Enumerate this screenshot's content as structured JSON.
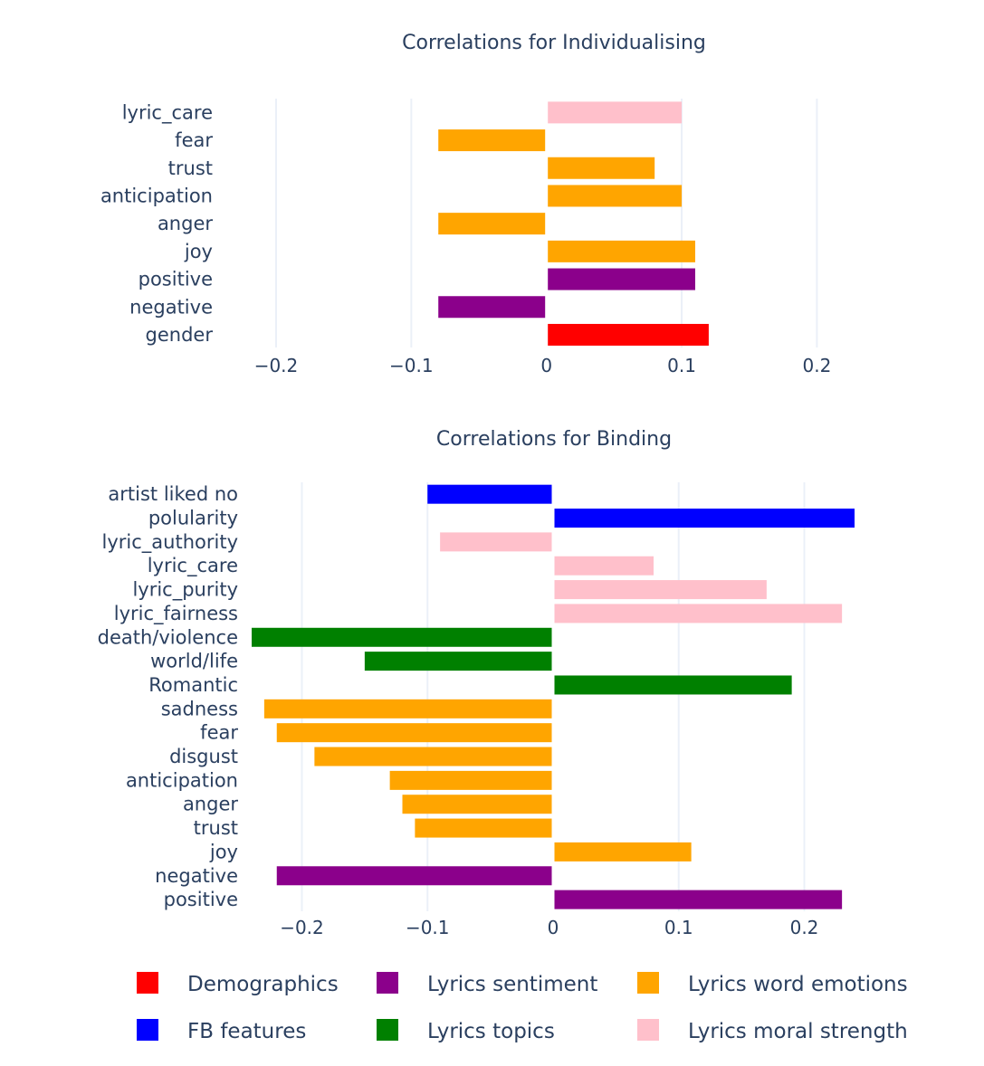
{
  "colors": {
    "Demographics": "#ff0000",
    "Lyrics sentiment": "#8b008b",
    "Lyrics word emotions": "#ffa500",
    "FB features": "#0000ff",
    "Lyrics topics": "#008000",
    "Lyrics moral strength": "#ffc0cb"
  },
  "chart_data": [
    {
      "type": "bar",
      "orientation": "horizontal",
      "title": "Correlations for Individualising",
      "xlim": [
        -0.2,
        0.26
      ],
      "xticks": [
        -0.2,
        -0.1,
        0,
        0.1,
        0.2
      ],
      "xtick_labels": [
        "−0.2",
        "−0.1",
        "0",
        "0.1",
        "0.2"
      ],
      "categories": [
        "lyric_care",
        "fear",
        "trust",
        "anticipation",
        "anger",
        "joy",
        "positive",
        "negative",
        "gender"
      ],
      "values": [
        0.1,
        -0.08,
        0.08,
        0.1,
        -0.08,
        0.11,
        0.11,
        -0.08,
        0.12
      ],
      "groups": [
        "Lyrics moral strength",
        "Lyrics word emotions",
        "Lyrics word emotions",
        "Lyrics word emotions",
        "Lyrics word emotions",
        "Lyrics word emotions",
        "Lyrics sentiment",
        "Lyrics sentiment",
        "Demographics"
      ]
    },
    {
      "type": "bar",
      "orientation": "horizontal",
      "title": "Correlations for Binding",
      "xlim": [
        -0.24,
        0.24
      ],
      "xticks": [
        -0.2,
        -0.1,
        0,
        0.1,
        0.2
      ],
      "xtick_labels": [
        "−0.2",
        "−0.1",
        "0",
        "0.1",
        "0.2"
      ],
      "categories": [
        "artist liked no",
        "polularity",
        "lyric_authority",
        "lyric_care",
        "lyric_purity",
        "lyric_fairness",
        "death/violence",
        "world/life",
        "Romantic",
        "sadness",
        "fear",
        "disgust",
        "anticipation",
        "anger",
        "trust",
        "joy",
        "negative",
        "positive"
      ],
      "values": [
        -0.1,
        0.24,
        -0.09,
        0.08,
        0.17,
        0.23,
        -0.24,
        -0.15,
        0.19,
        -0.23,
        -0.22,
        -0.19,
        -0.13,
        -0.12,
        -0.11,
        0.11,
        -0.22,
        0.23
      ],
      "groups": [
        "FB features",
        "FB features",
        "Lyrics moral strength",
        "Lyrics moral strength",
        "Lyrics moral strength",
        "Lyrics moral strength",
        "Lyrics topics",
        "Lyrics topics",
        "Lyrics topics",
        "Lyrics word emotions",
        "Lyrics word emotions",
        "Lyrics word emotions",
        "Lyrics word emotions",
        "Lyrics word emotions",
        "Lyrics word emotions",
        "Lyrics word emotions",
        "Lyrics sentiment",
        "Lyrics sentiment"
      ]
    }
  ],
  "legend": {
    "items": [
      "Demographics",
      "Lyrics sentiment",
      "Lyrics word emotions",
      "FB features",
      "Lyrics topics",
      "Lyrics moral strength"
    ]
  }
}
